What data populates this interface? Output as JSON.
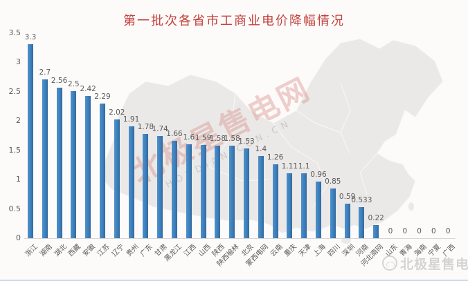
{
  "chart_data": {
    "type": "bar",
    "title": "第一批次各省市工商业电价降幅情况",
    "categories": [
      "浙江",
      "湖南",
      "湖北",
      "西藏",
      "安徽",
      "江苏",
      "辽宁",
      "贵州",
      "广东",
      "甘肃",
      "黑龙江",
      "江西",
      "山西",
      "陕西",
      "陕西榆林",
      "北京",
      "蒙西电网",
      "云南",
      "重庆",
      "天津",
      "上海",
      "四川",
      "深圳",
      "河南",
      "河北南网",
      "山东",
      "青海",
      "海南",
      "宁夏",
      "广西"
    ],
    "values": [
      3.3,
      2.7,
      2.56,
      2.5,
      2.42,
      2.29,
      2.02,
      1.91,
      1.78,
      1.74,
      1.66,
      1.6,
      1.59,
      1.58,
      1.58,
      1.53,
      1.4,
      1.26,
      1.11,
      1.1,
      0.96,
      0.85,
      0.59,
      0.533,
      0.22,
      0,
      0,
      0,
      0,
      0
    ],
    "value_labels": [
      "3.3",
      "2.7",
      "2.56",
      "2.5",
      "2.42",
      "2.29",
      "2.02",
      "1.91",
      "1.78",
      "1.74",
      "1.66",
      "1.6",
      "1.59",
      "1.58",
      "1.58",
      "1.53",
      "1.4",
      "1.26",
      "1.11",
      "1.1",
      "0.96",
      "0.85",
      "0.59",
      "0.533",
      "0.22",
      "0",
      "0",
      "0",
      "0",
      "0"
    ],
    "xlabel": "",
    "ylabel": "",
    "ylim": [
      0,
      3.5
    ],
    "yticks": [
      0,
      0.5,
      1,
      1.5,
      2,
      2.5,
      3,
      3.5
    ],
    "grid": false,
    "legend": "none",
    "background": "china-map-silhouette"
  },
  "watermarks": {
    "diagonal_main": "北极星售电网",
    "diagonal_sub": "SHOUDIAN.CON.CN",
    "footer_text": "北极星售电网"
  },
  "colors": {
    "bar": "#3d80bd",
    "bar_gradient_light": "#4d90c9",
    "bar_gradient_dark": "#31699f",
    "title": "#c4413c",
    "axis_text": "#595959",
    "map_fill": "#eae9e8",
    "map_border": "#f8f8f8",
    "watermark_pink": "rgba(217,137,131,0.40)",
    "watermark_gray": "rgba(150,150,150,0.38)",
    "footer_watermark": "#d4d4d4"
  }
}
